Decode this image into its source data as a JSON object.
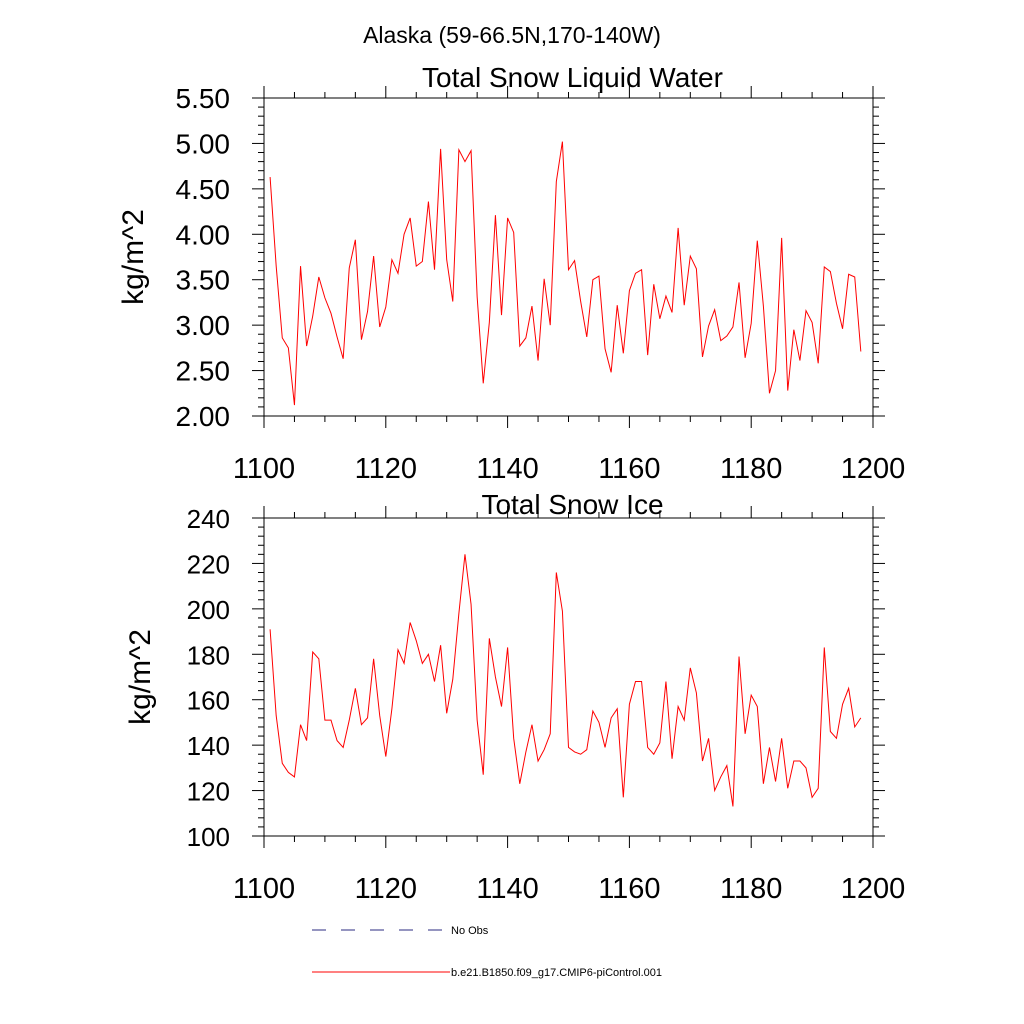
{
  "figure": {
    "suptitle": "Alaska (59-66.5N,170-140W)"
  },
  "legend": {
    "placement": "bottom",
    "entries": [
      {
        "label": "No Obs",
        "style": "dashed",
        "color": "#2b2b80"
      },
      {
        "label": "b.e21.B1850.f09_g17.CMIP6-piControl.001",
        "style": "solid",
        "color": "#ff0000"
      }
    ]
  },
  "chart_data": [
    {
      "type": "line",
      "title": "Total Snow Liquid Water",
      "xlabel": "",
      "ylabel": "kg/m^2",
      "xlim": [
        1100,
        1200
      ],
      "ylim": [
        2.0,
        5.5
      ],
      "xticks": [
        1100,
        1120,
        1140,
        1160,
        1180,
        1200
      ],
      "xtick_labels": [
        "1100",
        "1120",
        "1140",
        "1160",
        "1180",
        "1200"
      ],
      "yticks": [
        2.0,
        2.5,
        3.0,
        3.5,
        4.0,
        4.5,
        5.0,
        5.5
      ],
      "ytick_labels": [
        "2.00",
        "2.50",
        "3.00",
        "3.50",
        "4.00",
        "4.50",
        "5.00",
        "5.50"
      ],
      "grid": false,
      "series": [
        {
          "name": "b.e21.B1850.f09_g17.CMIP6-piControl.001",
          "color": "#ff0000",
          "x_start": 1101,
          "values": [
            4.63,
            3.65,
            2.86,
            2.75,
            2.12,
            3.65,
            2.77,
            3.1,
            3.53,
            3.3,
            3.13,
            2.87,
            2.63,
            3.63,
            3.94,
            2.84,
            3.15,
            3.76,
            2.98,
            3.2,
            3.72,
            3.57,
            4.0,
            4.18,
            3.65,
            3.7,
            4.36,
            3.61,
            4.94,
            3.72,
            3.26,
            4.93,
            4.8,
            4.92,
            3.31,
            2.36,
            3.03,
            4.21,
            3.11,
            4.18,
            4.02,
            2.77,
            2.86,
            3.21,
            2.61,
            3.51,
            3.0,
            4.58,
            5.02,
            3.61,
            3.71,
            3.26,
            2.87,
            3.5,
            3.54,
            2.74,
            2.48,
            3.22,
            2.69,
            3.38,
            3.57,
            3.61,
            2.67,
            3.45,
            3.07,
            3.32,
            3.14,
            4.07,
            3.22,
            3.76,
            3.62,
            2.65,
            2.99,
            3.17,
            2.83,
            2.88,
            2.98,
            3.47,
            2.64,
            3.02,
            3.93,
            3.21,
            2.25,
            2.5,
            3.96,
            2.28,
            2.95,
            2.61,
            3.16,
            3.03,
            2.58,
            3.64,
            3.59,
            3.24,
            2.96,
            3.56,
            3.53,
            2.71
          ]
        }
      ]
    },
    {
      "type": "line",
      "title": "Total Snow Ice",
      "xlabel": "",
      "ylabel": "kg/m^2",
      "xlim": [
        1100,
        1200
      ],
      "ylim": [
        100,
        240
      ],
      "xticks": [
        1100,
        1120,
        1140,
        1160,
        1180,
        1200
      ],
      "xtick_labels": [
        "1100",
        "1120",
        "1140",
        "1160",
        "1180",
        "1200"
      ],
      "yticks": [
        100,
        120,
        140,
        160,
        180,
        200,
        220,
        240
      ],
      "ytick_labels": [
        "100",
        "120",
        "140",
        "160",
        "180",
        "200",
        "220",
        "240"
      ],
      "grid": false,
      "series": [
        {
          "name": "b.e21.B1850.f09_g17.CMIP6-piControl.001",
          "color": "#ff0000",
          "x_start": 1101,
          "values": [
            191,
            153,
            132,
            128,
            126,
            149,
            142,
            181,
            178,
            151,
            151,
            142,
            139,
            151,
            165,
            149,
            152,
            178,
            153,
            135,
            156,
            182,
            176,
            194,
            186,
            176,
            180,
            168,
            184,
            154,
            169,
            198,
            224,
            202,
            151,
            127,
            187,
            170,
            157,
            183,
            143,
            123,
            137,
            149,
            133,
            138,
            145,
            216,
            199,
            139,
            137,
            136,
            138,
            155,
            150,
            139,
            152,
            156,
            117,
            158,
            168,
            168,
            139,
            136,
            141,
            168,
            134,
            157,
            151,
            174,
            163,
            133,
            143,
            120,
            126,
            131,
            113,
            179,
            145,
            162,
            157,
            123,
            139,
            124,
            143,
            121,
            133,
            133,
            130,
            117,
            121,
            183,
            146,
            143,
            158,
            165,
            148,
            152
          ]
        }
      ]
    }
  ]
}
